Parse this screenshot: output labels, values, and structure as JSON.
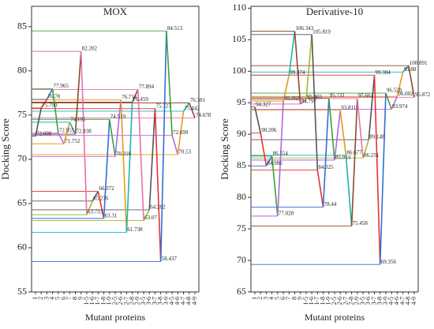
{
  "chart_data": [
    {
      "type": "line",
      "title": "MOX",
      "x_label": "Mutant proteins",
      "y_label": "Docking Score",
      "categories": [
        "1",
        "2",
        "3",
        "4",
        "5",
        "6",
        "7",
        "8",
        "9",
        "1-5",
        "1-6",
        "1-7",
        "1-8",
        "1-9",
        "2-5",
        "2-6",
        "2-7",
        "2-8",
        "2-9",
        "3-5",
        "3-6",
        "3-7",
        "3-8",
        "3-9",
        "4-5",
        "4-6",
        "4-7",
        "4-8",
        "4-9"
      ],
      "values": [
        72.608,
        75.799,
        76.78,
        77.965,
        72.955,
        71.752,
        74.195,
        72.838,
        82.202,
        63.733,
        65.276,
        66.372,
        63.31,
        74.519,
        70.316,
        76.716,
        61.738,
        76.459,
        77.894,
        63.07,
        64.282,
        75.727,
        58.437,
        84.513,
        72.699,
        70.53,
        75.442,
        76.381,
        74.678
      ],
      "colors": [
        "#555555",
        "#e8312f",
        "#2f6fd8",
        "#3aa33a",
        "#b565e0",
        "#e69a1c",
        "#1bb5b5",
        "#8b4a2b",
        "#e86fb0",
        "#9fba2a"
      ],
      "ylim": [
        55,
        87.3
      ],
      "yticks": [
        55,
        60,
        65,
        70,
        75,
        80,
        85
      ]
    },
    {
      "type": "line",
      "title": "Derivative-10",
      "x_label": "Mutant proteins",
      "y_label": "Docking Score",
      "categories": [
        "1",
        "2",
        "3",
        "4",
        "5",
        "6",
        "7",
        "8",
        "9",
        "1-5",
        "1-6",
        "1-7",
        "1-8",
        "1-9",
        "2-5",
        "2-6",
        "2-7",
        "2-8",
        "2-9",
        "3-5",
        "3-6",
        "3-7",
        "3-8",
        "3-9",
        "4-5",
        "4-6",
        "4-7",
        "4-8",
        "4-9"
      ],
      "values": [
        94.327,
        90.206,
        84.986,
        86.554,
        77.028,
        95.262,
        99.374,
        106.343,
        94.797,
        95.465,
        105.819,
        84.325,
        78.44,
        95.731,
        85.914,
        93.811,
        86.677,
        75.458,
        95.664,
        86.251,
        89.148,
        99.384,
        69.356,
        96.528,
        93.974,
        96.002,
        99.88,
        100.891,
        95.872
      ],
      "colors": [
        "#555555",
        "#e8312f",
        "#2f6fd8",
        "#3aa33a",
        "#b565e0",
        "#e69a1c",
        "#1bb5b5",
        "#8b4a2b",
        "#e86fb0",
        "#9fba2a"
      ],
      "ylim": [
        65,
        110.3
      ],
      "yticks": [
        65,
        70,
        75,
        80,
        85,
        90,
        95,
        100,
        105,
        110
      ]
    }
  ]
}
